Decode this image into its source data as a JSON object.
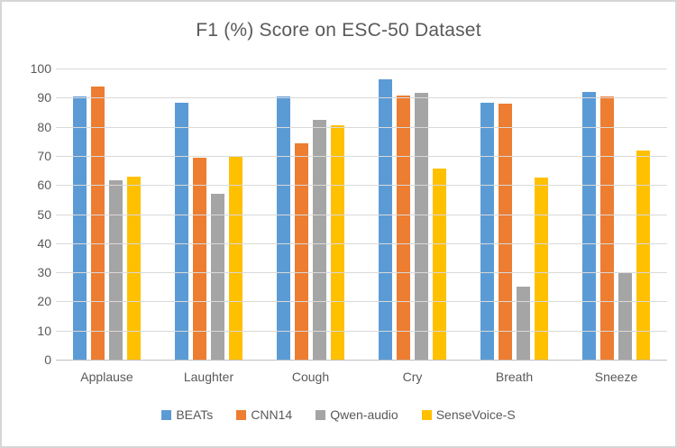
{
  "chart_data": {
    "type": "bar",
    "title": "F1 (%) Score on ESC-50 Dataset",
    "categories": [
      "Applause",
      "Laughter",
      "Cough",
      "Cry",
      "Breath",
      "Sneeze"
    ],
    "series": [
      {
        "name": "BEATs",
        "color": "#5B9BD5",
        "values": [
          90.3,
          88.3,
          90.4,
          96.2,
          88.3,
          92.1
        ]
      },
      {
        "name": "CNN14",
        "color": "#ED7D31",
        "values": [
          93.8,
          69.5,
          74.2,
          90.8,
          87.9,
          90.5
        ]
      },
      {
        "name": "Qwen-audio",
        "color": "#A5A5A5",
        "values": [
          61.5,
          57.1,
          82.5,
          91.6,
          25.2,
          29.8
        ]
      },
      {
        "name": "SenseVoice-S",
        "color": "#FFC000",
        "values": [
          62.8,
          69.7,
          80.6,
          65.5,
          62.6,
          71.8
        ]
      }
    ],
    "xlabel": "",
    "ylabel": "",
    "ylim": [
      0,
      100
    ],
    "ytick_step": 10,
    "ytick_labels": [
      "0",
      "10",
      "20",
      "30",
      "40",
      "50",
      "60",
      "70",
      "80",
      "90",
      "100"
    ],
    "grid": true,
    "legend_position": "bottom",
    "colors": {
      "text": "#595959",
      "gridline": "#D9D9D9",
      "axis_line": "#BFBFBF",
      "background": "#FFFFFF",
      "frame_border": "#D6D6D6"
    }
  }
}
